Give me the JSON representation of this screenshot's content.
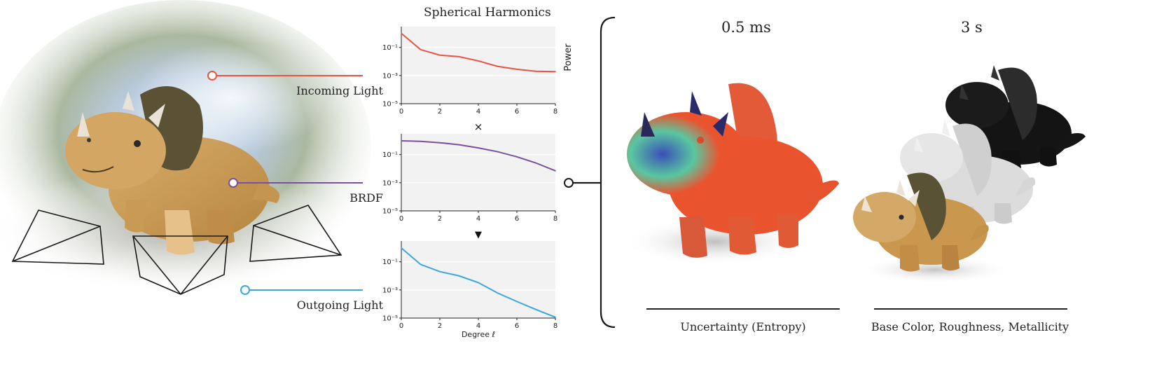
{
  "title": "Spherical Harmonics",
  "inputs": {
    "incoming_label": "Incoming Light",
    "brdf_label": "BRDF",
    "outgoing_label": "Outgoing Light"
  },
  "operators": {
    "multiply": "×",
    "result": "▼"
  },
  "results": {
    "left_timing": "0.5 ms",
    "right_timing": "3 s",
    "left_caption": "Uncertainty (Entropy)",
    "right_caption": "Base Color, Roughness, Metallicity"
  },
  "colors": {
    "incoming": "#e8553f",
    "brdf": "#7b4fa2",
    "outgoing": "#3aa7dd",
    "plot_bg": "#f2f2f2"
  },
  "chart_data": [
    {
      "type": "line",
      "name": "Incoming Light",
      "x": [
        0,
        1,
        2,
        3,
        4,
        5,
        6,
        7,
        8
      ],
      "values": [
        1.0,
        0.07,
        0.028,
        0.022,
        0.011,
        0.0045,
        0.0028,
        0.002,
        0.0019
      ],
      "xlim": [
        0,
        8
      ],
      "ylim": [
        1e-05,
        3
      ],
      "yscale": "log",
      "xticks": [
        "0",
        "2",
        "4",
        "6",
        "8"
      ],
      "yticks": [
        "10⁻¹",
        "10⁻³",
        "10⁻⁵"
      ],
      "ylabel": "Power",
      "xlabel": "",
      "grid": true
    },
    {
      "type": "line",
      "name": "BRDF",
      "x": [
        0,
        1,
        2,
        3,
        4,
        5,
        6,
        7,
        8
      ],
      "values": [
        0.95,
        0.88,
        0.7,
        0.5,
        0.3,
        0.16,
        0.07,
        0.025,
        0.007
      ],
      "xlim": [
        0,
        8
      ],
      "ylim": [
        1e-05,
        3
      ],
      "yscale": "log",
      "xticks": [
        "0",
        "2",
        "4",
        "6",
        "8"
      ],
      "yticks": [
        "10⁻¹",
        "10⁻³",
        "10⁻⁵"
      ],
      "xlabel": "",
      "grid": true
    },
    {
      "type": "line",
      "name": "Outgoing Light",
      "x": [
        0,
        1,
        2,
        3,
        4,
        5,
        6,
        7,
        8
      ],
      "values": [
        0.95,
        0.065,
        0.02,
        0.01,
        0.0033,
        0.0006,
        0.00015,
        4e-05,
        1.15e-05
      ],
      "xlim": [
        0,
        8
      ],
      "ylim": [
        1e-05,
        3
      ],
      "yscale": "log",
      "xticks": [
        "0",
        "2",
        "4",
        "6",
        "8"
      ],
      "yticks": [
        "10⁻¹",
        "10⁻³",
        "10⁻⁵"
      ],
      "xlabel": "Degree ℓ",
      "grid": true
    }
  ]
}
